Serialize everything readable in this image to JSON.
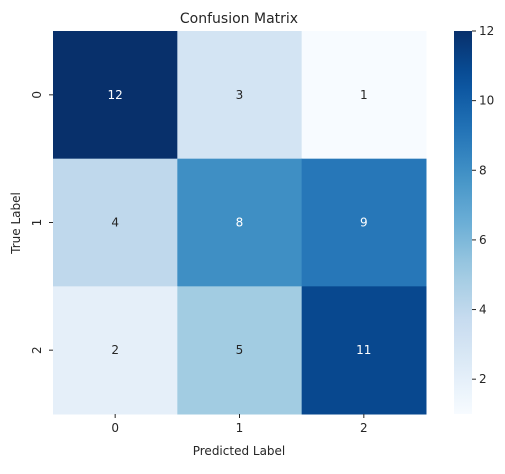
{
  "chart_data": {
    "type": "heatmap",
    "title": "Confusion Matrix",
    "xlabel": "Predicted Label",
    "ylabel": "True Label",
    "x_categories": [
      "0",
      "1",
      "2"
    ],
    "y_categories": [
      "0",
      "1",
      "2"
    ],
    "values": [
      [
        12,
        3,
        1
      ],
      [
        4,
        8,
        9
      ],
      [
        2,
        5,
        11
      ]
    ],
    "colormap": "Blues",
    "colorbar": {
      "min": 1,
      "max": 12,
      "ticks": [
        "2",
        "4",
        "6",
        "8",
        "10",
        "12"
      ]
    },
    "annotations": true,
    "grid": false
  }
}
